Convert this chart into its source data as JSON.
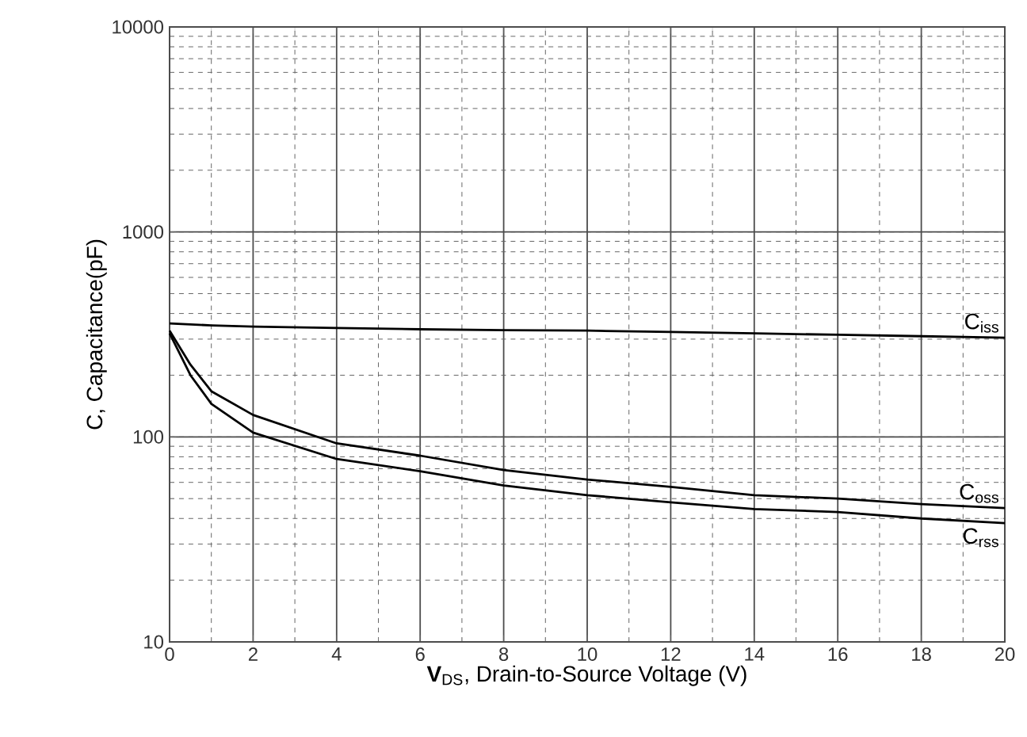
{
  "chart_data": {
    "type": "line",
    "xlabel": "**V**$_{DS}$, Drain-to-Source Voltage (V)",
    "ylabel": "C, Capacitance(pF)",
    "log": "y",
    "grid": true,
    "xlim": [
      0,
      20
    ],
    "xticks": [
      0,
      2,
      4,
      6,
      8,
      10,
      12,
      14,
      16,
      18,
      20
    ],
    "ylim": [
      10,
      10000
    ],
    "yticks": [
      10,
      100,
      1000,
      10000
    ],
    "series": [
      {
        "name": "C$_{iss}$",
        "color": "#000000",
        "x": [
          0,
          1,
          2,
          4,
          6,
          8,
          10,
          12,
          14,
          16,
          18,
          20
        ],
        "values": [
          358,
          350,
          345,
          340,
          335,
          332,
          330,
          325,
          320,
          315,
          310,
          305
        ]
      },
      {
        "name": "C$_{oss}$",
        "color": "#000000",
        "x": [
          0,
          0.5,
          1,
          2,
          4,
          6,
          8,
          10,
          12,
          14,
          16,
          18,
          20
        ],
        "values": [
          330,
          225,
          167,
          128,
          93,
          81,
          69,
          62,
          57,
          52,
          50,
          47,
          45
        ]
      },
      {
        "name": "C$_{rss}$",
        "color": "#000000",
        "x": [
          0,
          0.5,
          1,
          2,
          4,
          6,
          8,
          10,
          12,
          14,
          16,
          18,
          20
        ],
        "values": [
          320,
          200,
          145,
          105,
          78,
          68,
          58,
          52,
          48,
          44.5,
          43,
          40,
          38
        ]
      }
    ]
  }
}
